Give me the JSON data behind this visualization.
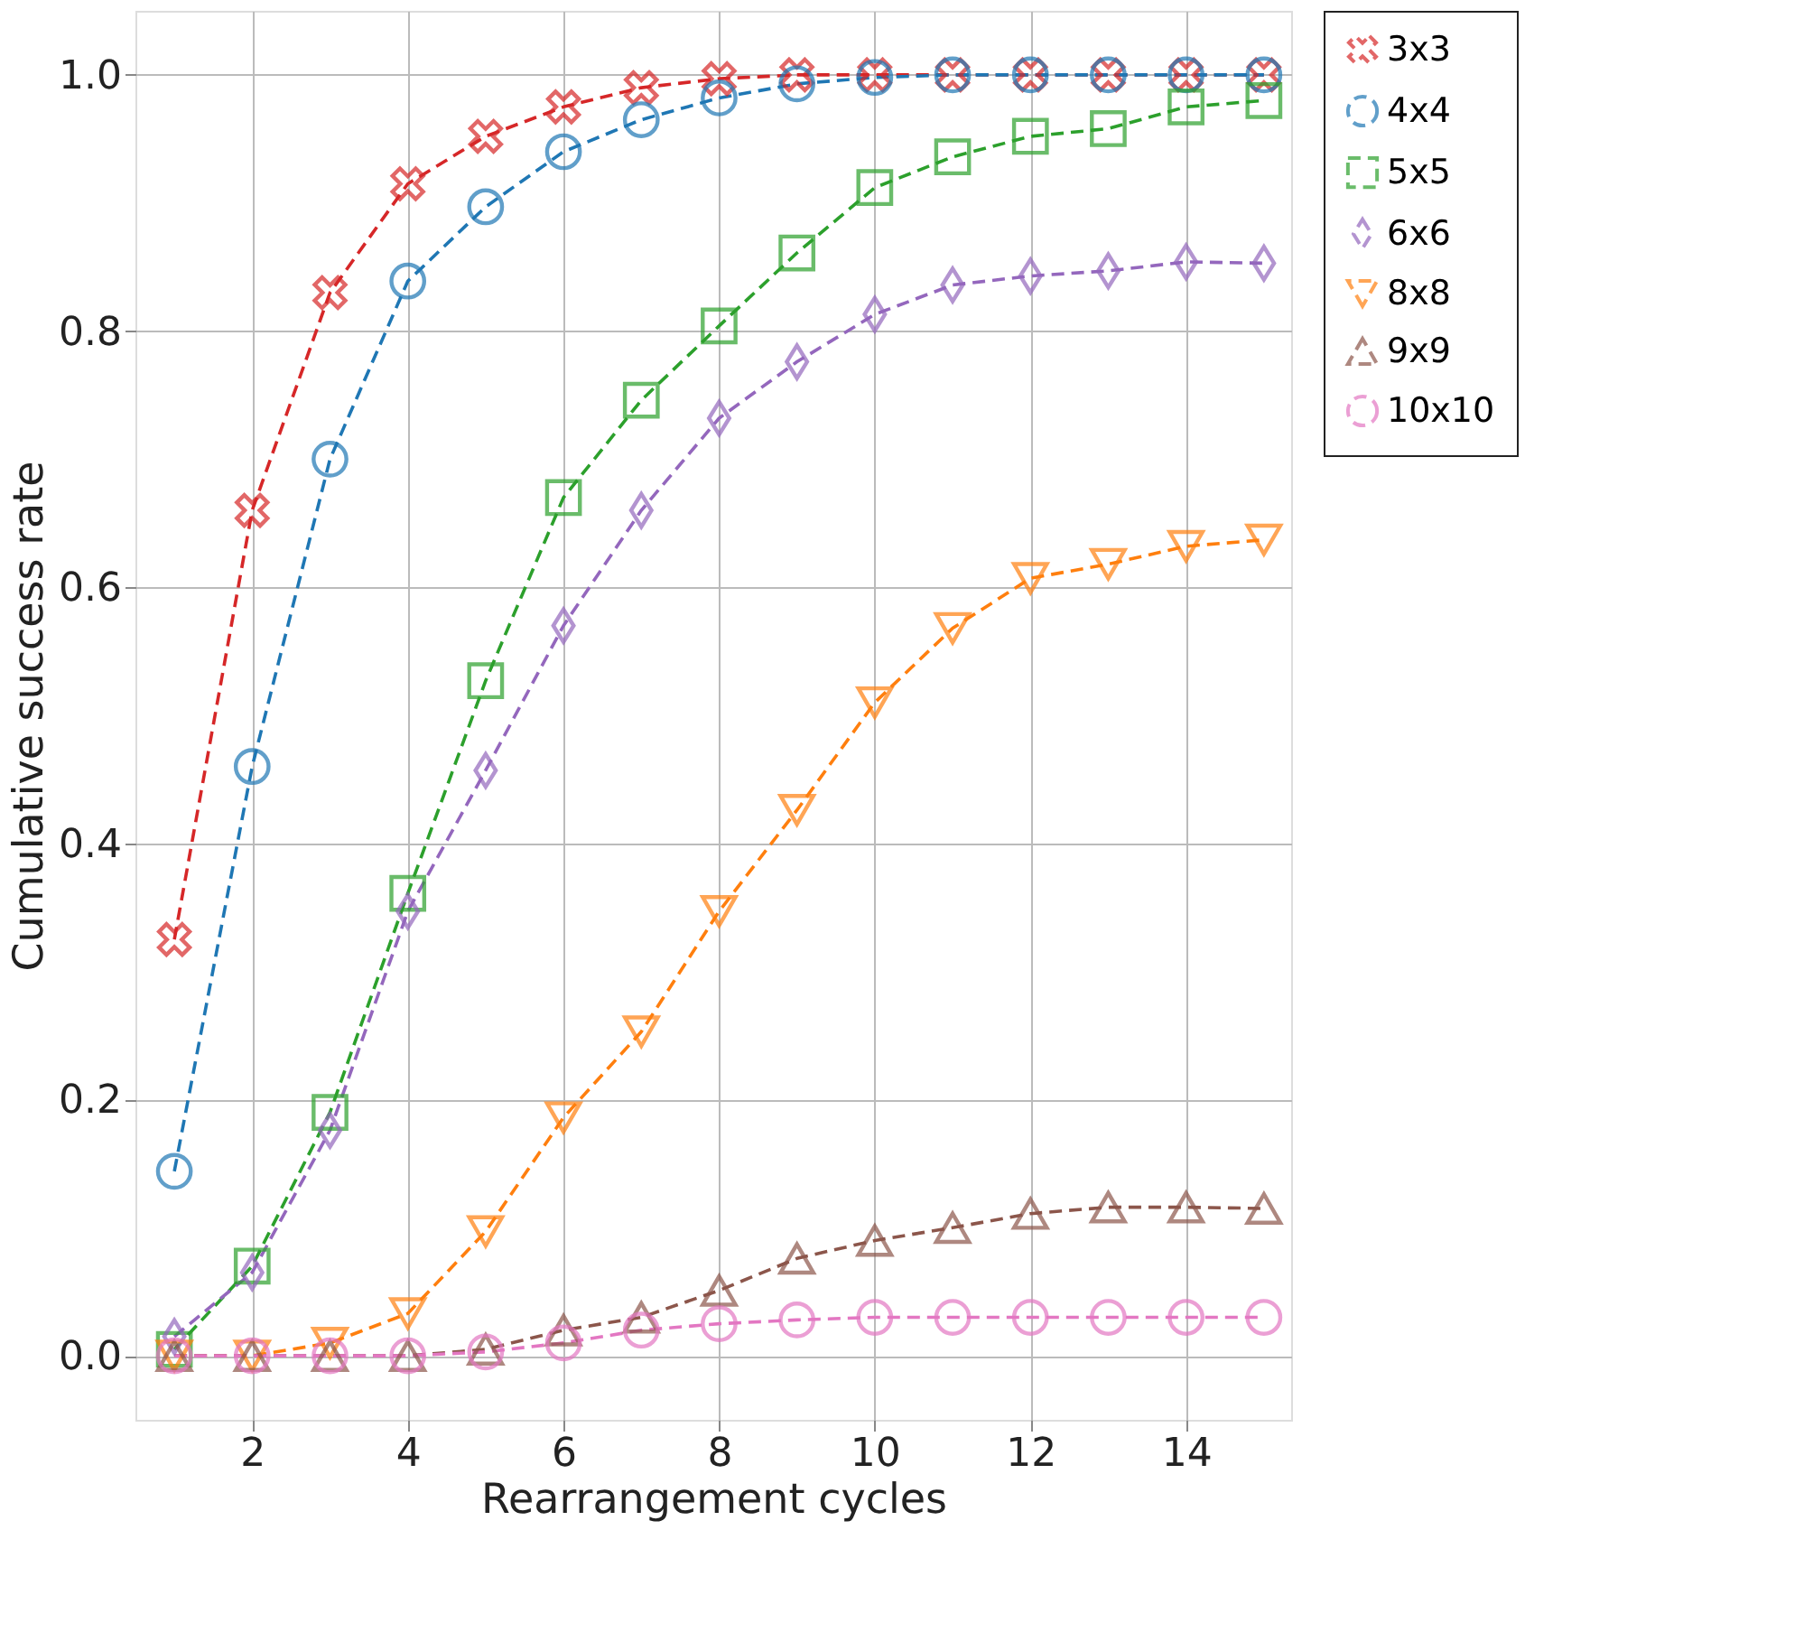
{
  "chart_data": {
    "type": "line",
    "xlabel": "Rearrangement cycles",
    "ylabel": "Cumulative success rate",
    "x": [
      1,
      2,
      3,
      4,
      5,
      6,
      7,
      8,
      9,
      10,
      11,
      12,
      13,
      14,
      15
    ],
    "series": [
      {
        "name": "3x3",
        "color": "#d62728",
        "marker": "cross",
        "values": [
          0.325,
          0.66,
          0.83,
          0.915,
          0.952,
          0.975,
          0.99,
          0.997,
          1.0,
          1.0,
          1.0,
          1.0,
          1.0,
          1.0,
          1.0
        ]
      },
      {
        "name": "4x4",
        "color": "#1f77b4",
        "marker": "circle",
        "values": [
          0.144,
          0.46,
          0.7,
          0.839,
          0.897,
          0.94,
          0.965,
          0.982,
          0.993,
          0.998,
          1.0,
          1.0,
          1.0,
          1.0,
          1.0
        ]
      },
      {
        "name": "5x5",
        "color": "#2ca02c",
        "marker": "square",
        "values": [
          0.005,
          0.07,
          0.19,
          0.361,
          0.527,
          0.67,
          0.746,
          0.804,
          0.861,
          0.912,
          0.936,
          0.952,
          0.958,
          0.975,
          0.98
        ]
      },
      {
        "name": "6x6",
        "color": "#9467bd",
        "marker": "diamond",
        "values": [
          0.015,
          0.065,
          0.176,
          0.347,
          0.457,
          0.57,
          0.66,
          0.732,
          0.776,
          0.813,
          0.836,
          0.843,
          0.847,
          0.854,
          0.853
        ]
      },
      {
        "name": "8x8",
        "color": "#ff7f0e",
        "marker": "triangle-down",
        "values": [
          0.0,
          0.0,
          0.01,
          0.033,
          0.097,
          0.186,
          0.253,
          0.347,
          0.426,
          0.51,
          0.568,
          0.607,
          0.618,
          0.632,
          0.637
        ]
      },
      {
        "name": "9x9",
        "color": "#8c564b",
        "marker": "triangle-up",
        "values": [
          0.0,
          0.0,
          0.0,
          0.0,
          0.005,
          0.02,
          0.03,
          0.051,
          0.076,
          0.09,
          0.1,
          0.111,
          0.116,
          0.116,
          0.115
        ]
      },
      {
        "name": "10x10",
        "color": "#e377c2",
        "marker": "circle",
        "values": [
          0.0,
          0.0,
          0.0,
          0.0,
          0.003,
          0.01,
          0.02,
          0.025,
          0.028,
          0.03,
          0.03,
          0.03,
          0.03,
          0.03,
          0.03
        ]
      }
    ],
    "xlim": [
      0.5,
      15.35
    ],
    "xticks": [
      2,
      4,
      6,
      8,
      10,
      12,
      14
    ],
    "ylim": [
      -0.05,
      1.05
    ],
    "yticks": [
      {
        "value": 0,
        "label": "0.0"
      },
      {
        "value": 0.2,
        "label": "0.2"
      },
      {
        "value": 0.4,
        "label": "0.4"
      },
      {
        "value": 0.6,
        "label": "0.6"
      },
      {
        "value": 0.8,
        "label": "0.8"
      },
      {
        "value": 1.0,
        "label": "1.0"
      }
    ],
    "grid": true,
    "legend": "top right",
    "line_style": "dashed"
  }
}
